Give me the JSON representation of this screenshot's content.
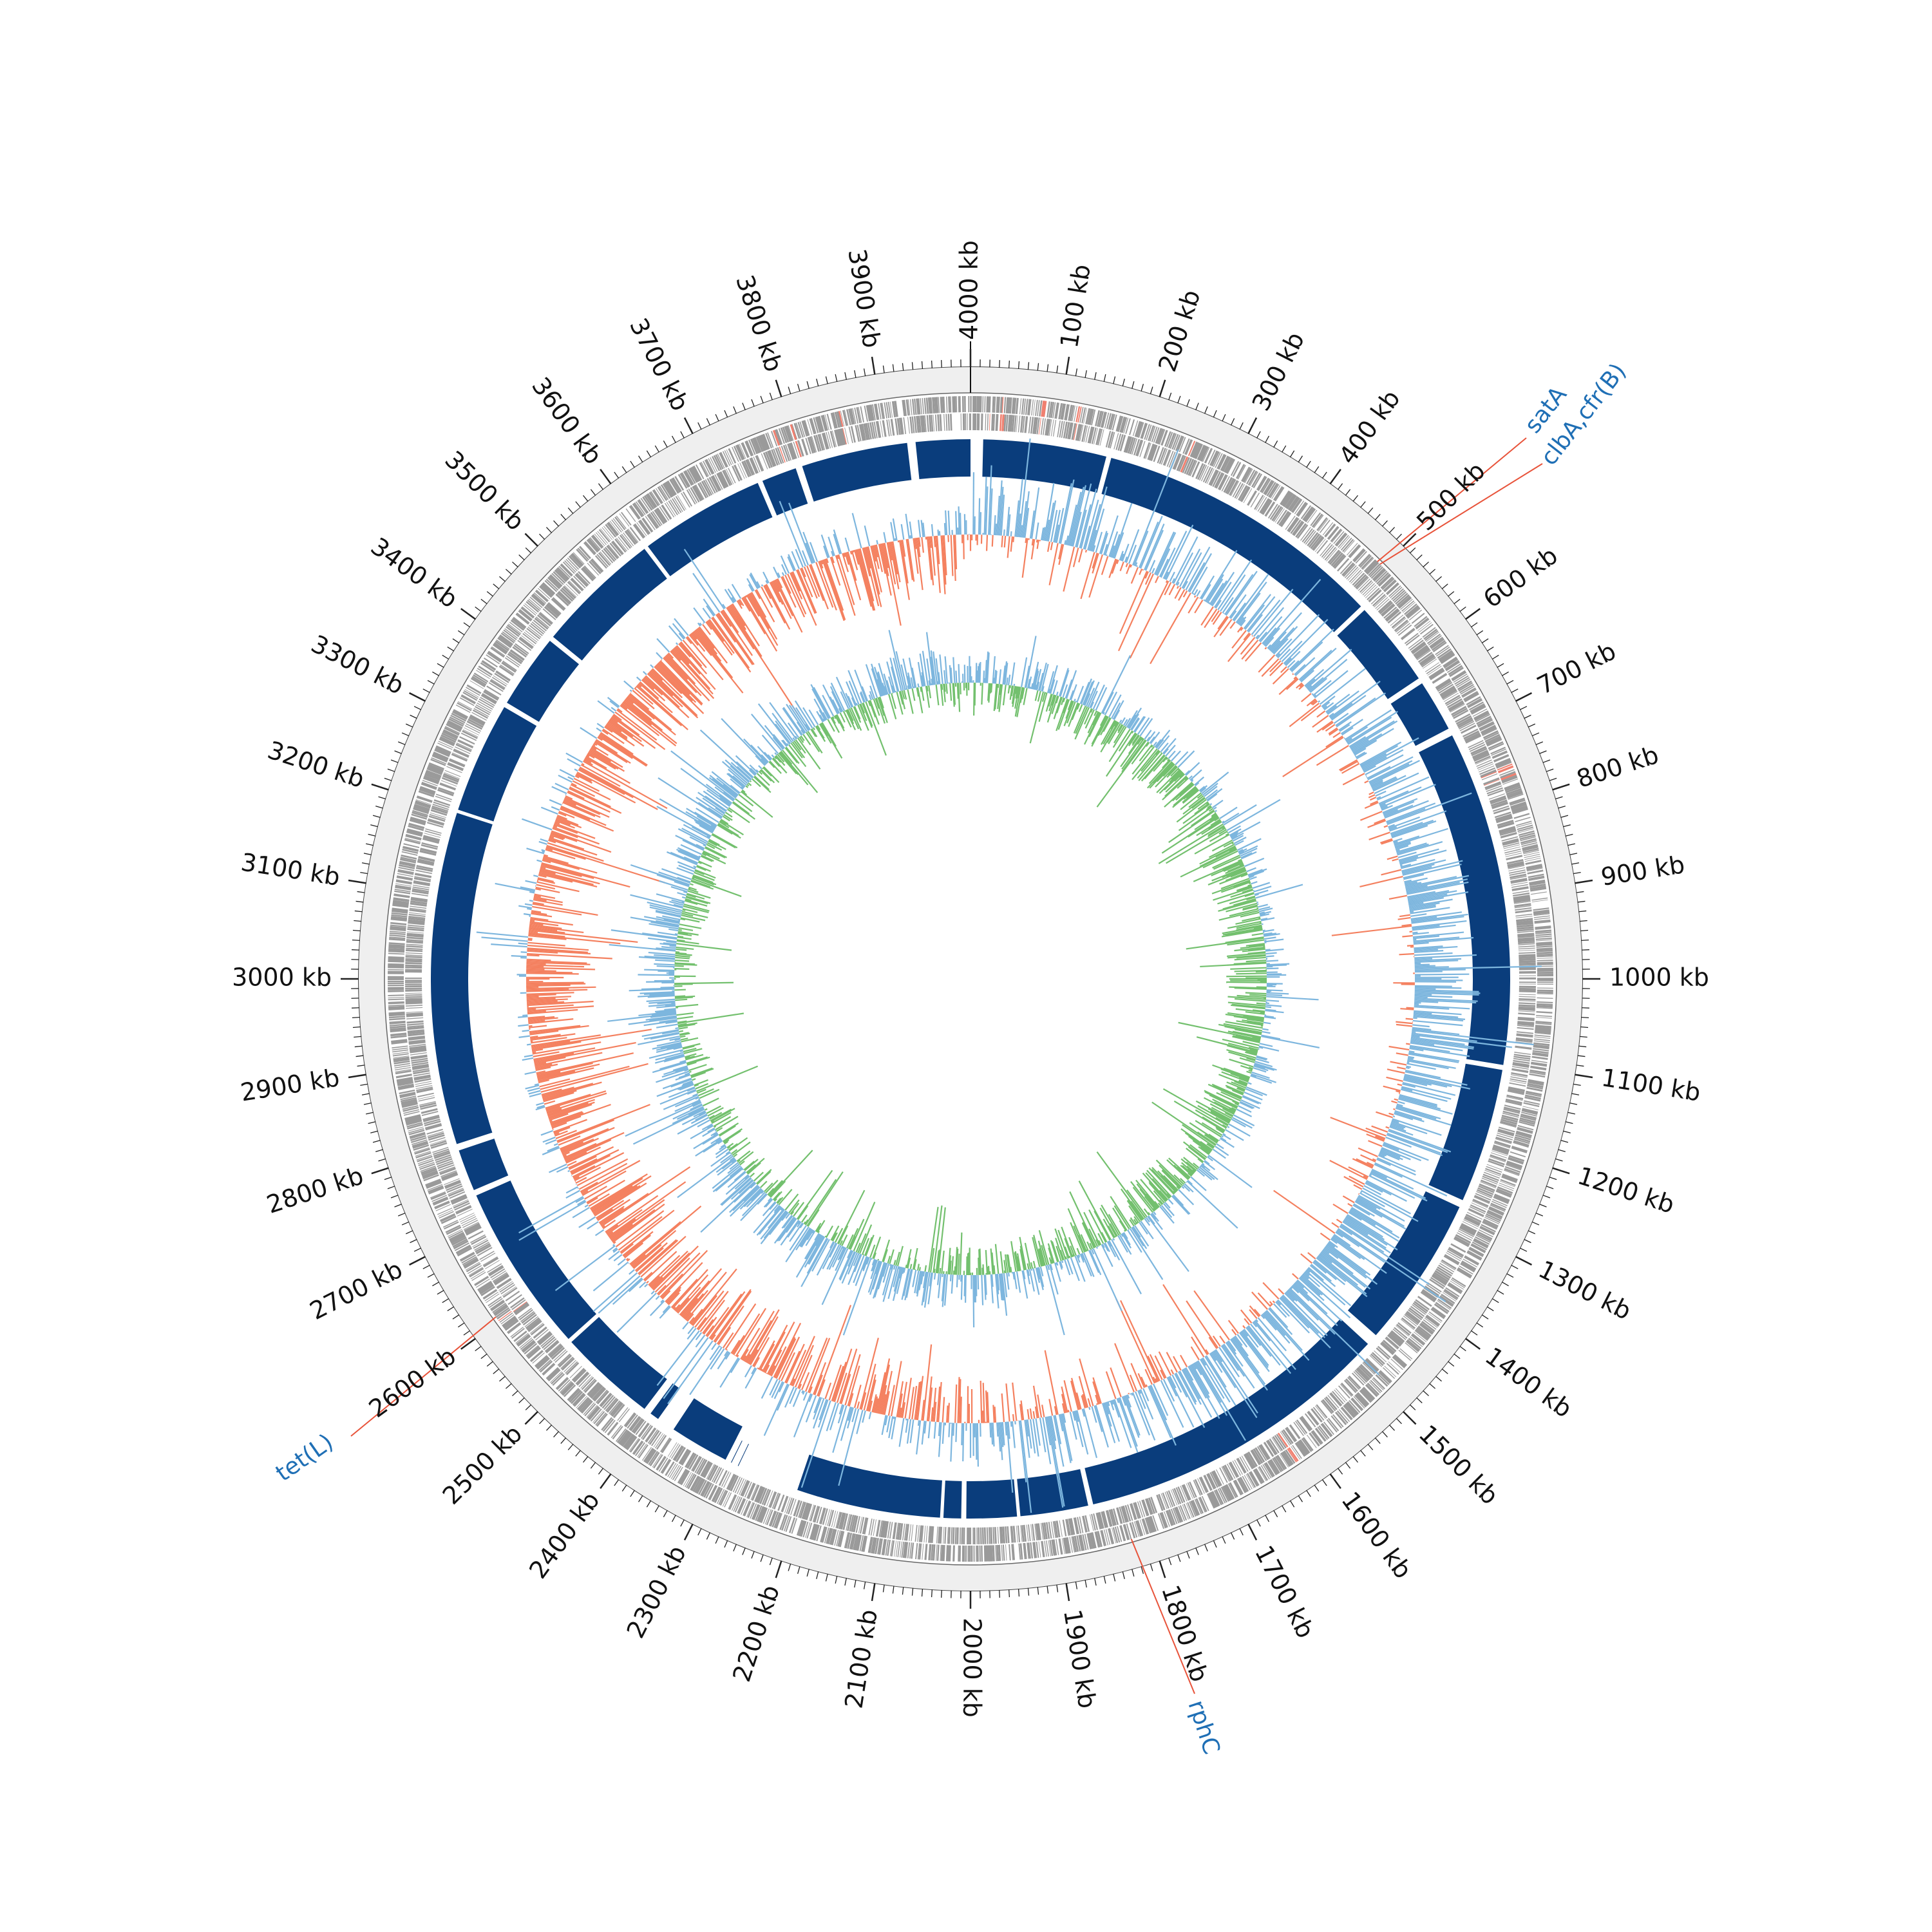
{
  "genome": {
    "length_kb": 4000,
    "tick_interval_kb": 100,
    "tick_unit": "kb"
  },
  "colors": {
    "ring_background": "#efefef",
    "cds_gray": "#9a9a9a",
    "cds_highlight": "#f08070",
    "contig_blue": "#0a3d7c",
    "gc_content_above": "#7db6de",
    "gc_content_below": "#f4805f",
    "gc_skew_above": "#7db6de",
    "gc_skew_below": "#73c06e",
    "label_line": "#e8533a",
    "label_text": "#1f6fb5"
  },
  "tick_labels": [
    "4000 kb",
    "100 kb",
    "200 kb",
    "300 kb",
    "400 kb",
    "500 kb",
    "600 kb",
    "700 kb",
    "800 kb",
    "900 kb",
    "1000 kb",
    "1100 kb",
    "1200 kb",
    "1300 kb",
    "1400 kb",
    "1500 kb",
    "1600 kb",
    "1700 kb",
    "1800 kb",
    "1900 kb",
    "2000 kb",
    "2100 kb",
    "2200 kb",
    "2300 kb",
    "2400 kb",
    "2500 kb",
    "2600 kb",
    "2700 kb",
    "2800 kb",
    "2900 kb",
    "3000 kb",
    "3100 kb",
    "3200 kb",
    "3300 kb",
    "3400 kb",
    "3500 kb",
    "3600 kb",
    "3700 kb",
    "3800 kb",
    "3900 kb"
  ],
  "resistance_genes": [
    {
      "name": "satA",
      "position_kb": 492
    },
    {
      "name": "clbA,cfr(B)",
      "position_kb": 496
    },
    {
      "name": "rphC",
      "position_kb": 1822
    },
    {
      "name": "tet(L)",
      "position_kb": 2606
    }
  ],
  "contig_gaps_kb": [
    [
      0,
      15
    ],
    [
      3925,
      3935
    ],
    [
      3790,
      3798
    ],
    [
      3742,
      3748
    ],
    [
      3587,
      3592
    ],
    [
      3431,
      3437
    ],
    [
      3336,
      3342
    ],
    [
      3199,
      3203
    ],
    [
      2794,
      2802
    ],
    [
      2737,
      2744
    ],
    [
      2530,
      2535
    ],
    [
      2404,
      2413
    ],
    [
      2371,
      2393
    ],
    [
      2288,
      2296
    ],
    [
      2208,
      2222
    ],
    [
      2210,
      2300
    ],
    [
      2032,
      2036
    ],
    [
      2005,
      2011
    ],
    [
      1941,
      1945
    ],
    [
      1854,
      1860
    ],
    [
      1459,
      1473
    ],
    [
      1269,
      1278
    ],
    [
      1102,
      1108
    ],
    [
      693,
      702
    ],
    [
      624,
      631
    ],
    [
      515,
      521
    ],
    [
      162,
      168
    ]
  ],
  "gc_content_profile": {
    "description_points_kb": [
      0,
      400,
      800,
      1200,
      1600,
      1900,
      2100,
      2500,
      3000,
      3500,
      3950
    ],
    "deviation": [
      0.9,
      0.6,
      0.7,
      0.8,
      0.7,
      0.3,
      -0.4,
      -0.8,
      -0.9,
      -0.8,
      -0.6
    ]
  },
  "gc_skew_profile": {
    "description_points_kb": [
      0,
      400,
      900,
      1300,
      1700,
      1950,
      2100,
      2400,
      3000,
      3500,
      3950
    ],
    "deviation": [
      0.2,
      -0.3,
      -0.4,
      -0.3,
      -0.2,
      -0.1,
      0.3,
      0.4,
      0.2,
      0.1,
      0.2
    ]
  }
}
